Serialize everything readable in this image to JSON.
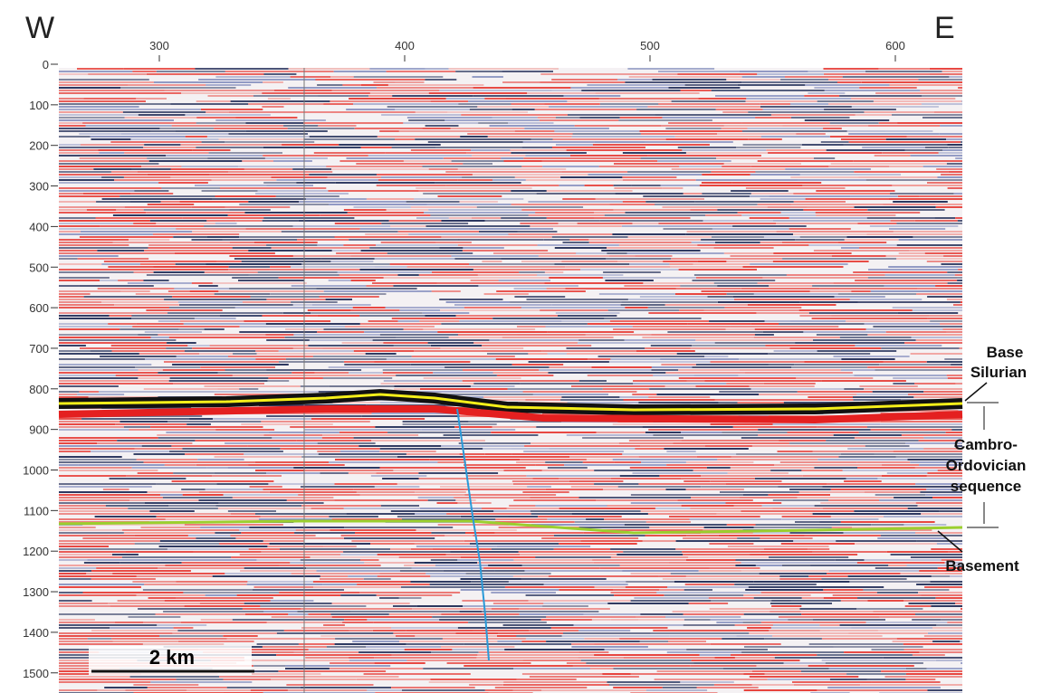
{
  "labels": {
    "west": "W",
    "east": "E",
    "base_silurian": [
      "Base",
      "Silurian"
    ],
    "sequence": [
      "Cambro-",
      "Ordovician",
      "sequence"
    ],
    "basement": "Basement",
    "scale": "2 km"
  },
  "top_axis": {
    "ticks": [
      300,
      400,
      500,
      600
    ]
  },
  "left_axis": {
    "ticks": [
      0,
      100,
      200,
      300,
      400,
      500,
      600,
      700,
      800,
      900,
      1000,
      1100,
      1200,
      1300,
      1400,
      1500
    ]
  }
}
